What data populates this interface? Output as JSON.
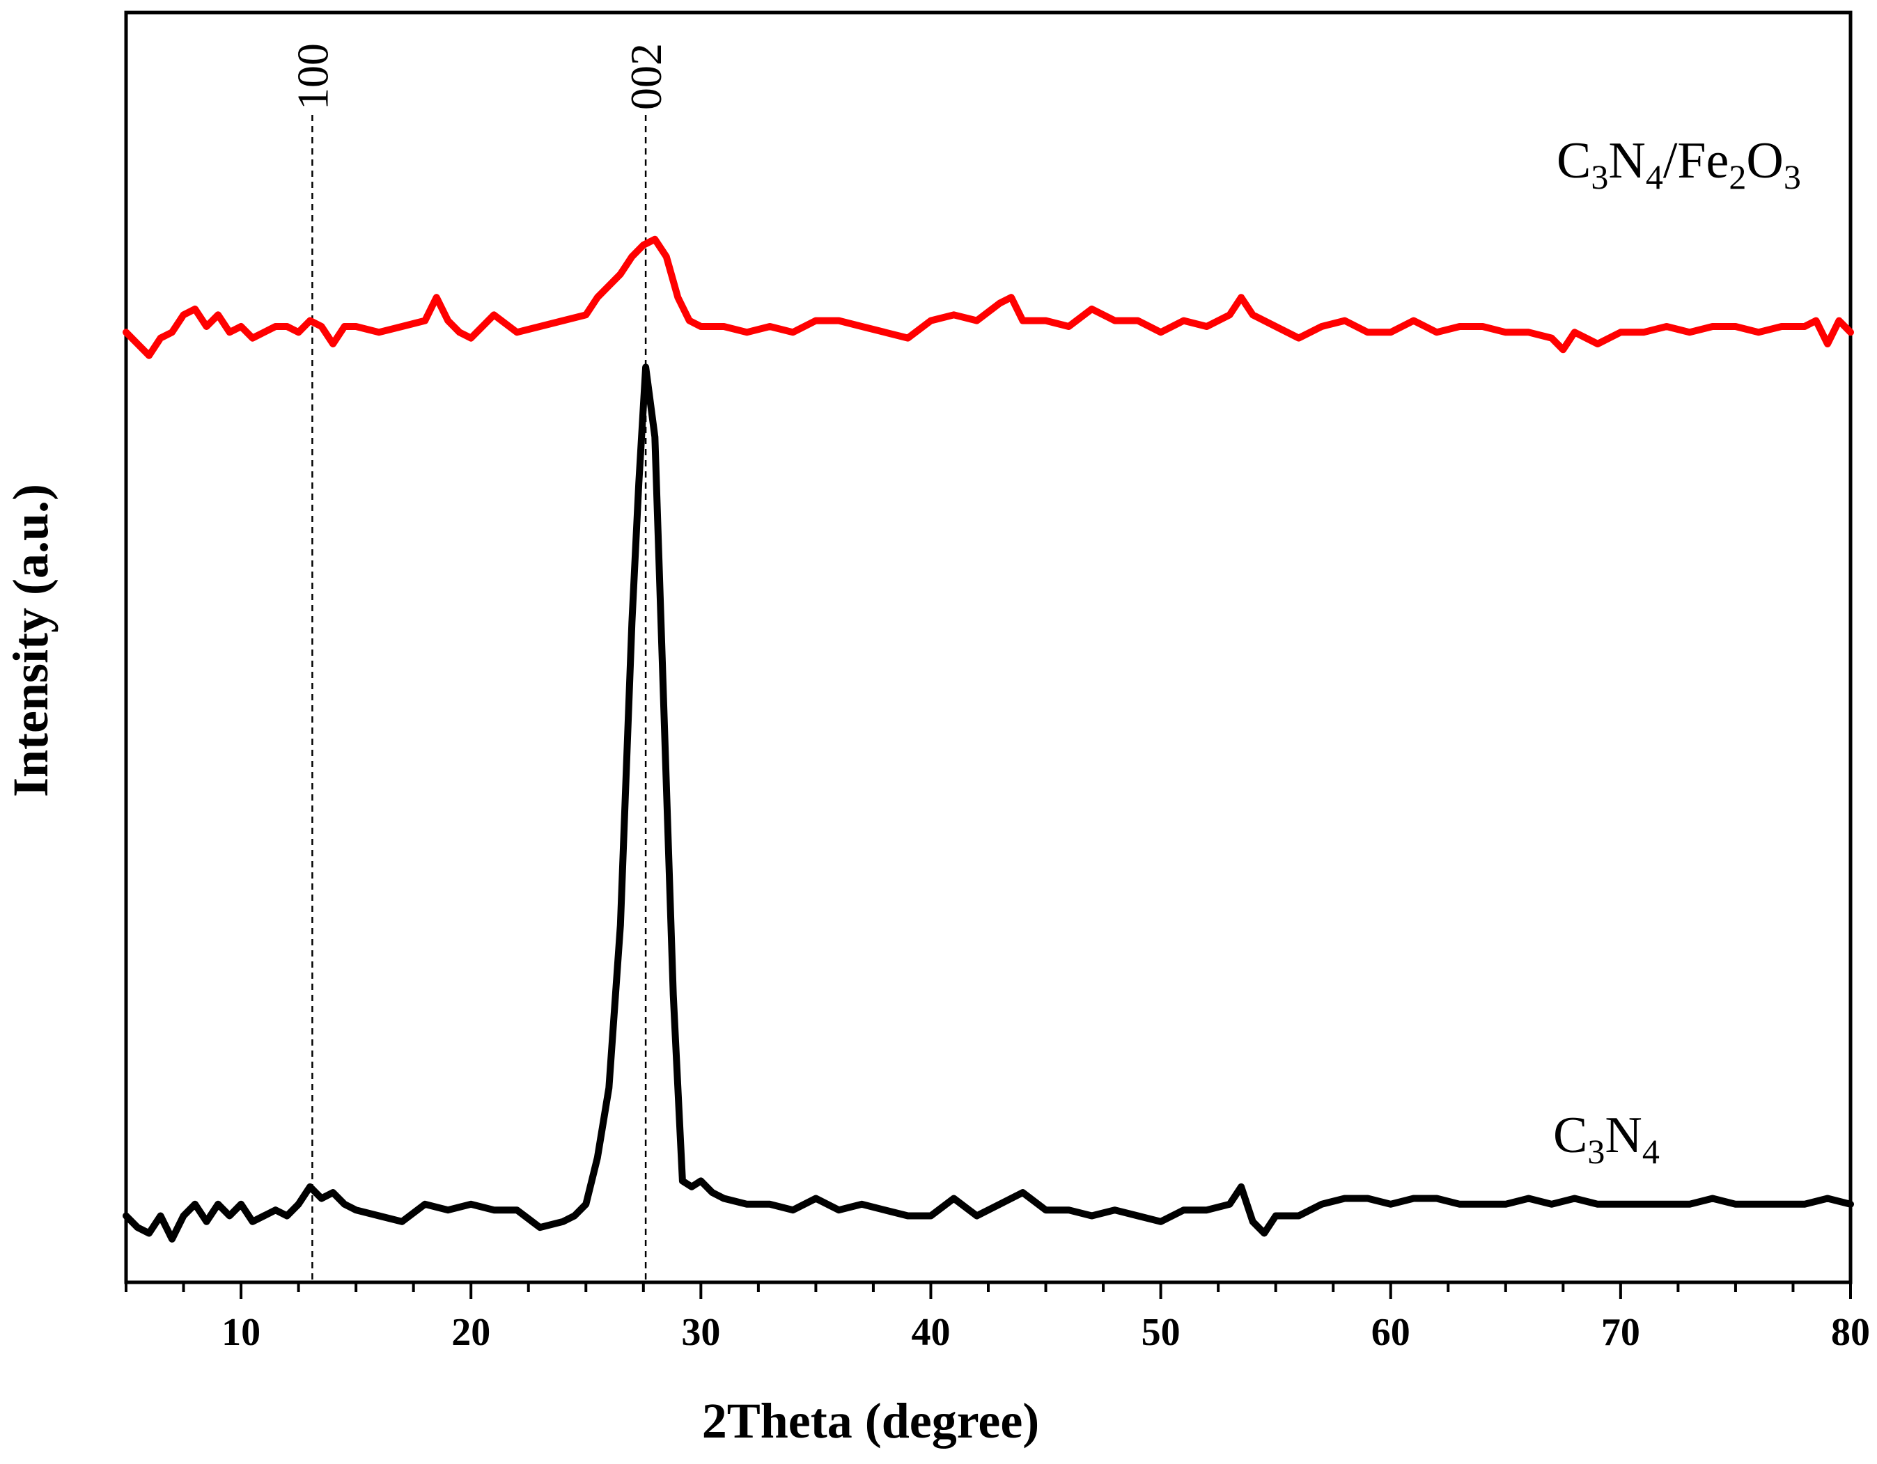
{
  "chart_data": {
    "type": "line",
    "xlabel": "2Theta (degree)",
    "ylabel": "Intensity (a.u.)",
    "xlim": [
      5,
      80
    ],
    "x_ticks": [
      10,
      20,
      30,
      40,
      50,
      60,
      70,
      80
    ],
    "x_ticks_minor_step": 2.5,
    "y_ticks_shown": false,
    "ylim": [
      0,
      100
    ],
    "grid": false,
    "legend": "none (series labelled inline)",
    "annotations": [
      {
        "text": "100",
        "x": 13.1,
        "style": "dashed vertical line"
      },
      {
        "text": "002",
        "x": 27.6,
        "style": "dashed vertical line"
      }
    ],
    "series": [
      {
        "label": [
          "C",
          "3",
          "N",
          "4"
        ],
        "color": "#000000",
        "x": [
          5,
          5.5,
          6,
          6.5,
          7,
          7.5,
          8,
          8.5,
          9,
          9.5,
          10,
          10.5,
          11,
          11.5,
          12,
          12.5,
          13,
          13.5,
          14,
          14.5,
          15,
          16,
          17,
          18,
          19,
          20,
          21,
          22,
          23,
          24,
          24.5,
          25,
          25.5,
          26,
          26.5,
          27,
          27.3,
          27.6,
          28,
          28.4,
          28.8,
          29.2,
          29.6,
          30,
          30.5,
          31,
          32,
          33,
          34,
          35,
          36,
          37,
          38,
          39,
          40,
          41,
          42,
          43,
          44,
          45,
          46,
          47,
          48,
          49,
          50,
          51,
          52,
          53,
          53.5,
          54,
          54.5,
          55,
          56,
          57,
          58,
          59,
          60,
          61,
          62,
          63,
          64,
          65,
          66,
          67,
          68,
          69,
          70,
          71,
          72,
          73,
          74,
          75,
          76,
          77,
          78,
          79,
          80
        ],
        "y": [
          5,
          4,
          3.5,
          5,
          3,
          5,
          6,
          4.5,
          6,
          5,
          6,
          4.5,
          5,
          5.5,
          5,
          6,
          7.5,
          6.5,
          7,
          6,
          5.5,
          5,
          4.5,
          6,
          5.5,
          6,
          5.5,
          5.5,
          4,
          4.5,
          5,
          6,
          10,
          16,
          30,
          56,
          68,
          78,
          72,
          48,
          24,
          8,
          7.5,
          8,
          7,
          6.5,
          6,
          6,
          5.5,
          6.5,
          5.5,
          6,
          5.5,
          5,
          5,
          6.5,
          5,
          6,
          7,
          5.5,
          5.5,
          5,
          5.5,
          5,
          4.5,
          5.5,
          5.5,
          6,
          7.5,
          4.5,
          3.5,
          5,
          5,
          6,
          6.5,
          6.5,
          6,
          6.5,
          6.5,
          6,
          6,
          6,
          6.5,
          6,
          6.5,
          6,
          6,
          6,
          6,
          6,
          6.5,
          6,
          6,
          6,
          6,
          6.5,
          6
        ]
      },
      {
        "label": [
          "C",
          "3",
          "N",
          "4",
          "/Fe",
          "2",
          "O",
          "3"
        ],
        "color": "#ff0000",
        "x": [
          5,
          5.5,
          6,
          6.5,
          7,
          7.5,
          8,
          8.5,
          9,
          9.5,
          10,
          10.5,
          11,
          11.5,
          12,
          12.5,
          13,
          13.5,
          14,
          14.5,
          15,
          16,
          17,
          18,
          18.5,
          19,
          19.5,
          20,
          21,
          22,
          23,
          24,
          25,
          25.5,
          26,
          26.5,
          27,
          27.5,
          28,
          28.5,
          29,
          29.5,
          30,
          31,
          32,
          33,
          34,
          35,
          36,
          37,
          38,
          39,
          40,
          41,
          42,
          43,
          43.5,
          44,
          45,
          46,
          47,
          48,
          49,
          50,
          51,
          52,
          53,
          53.5,
          54,
          55,
          56,
          57,
          58,
          59,
          60,
          61,
          62,
          63,
          64,
          65,
          66,
          67,
          67.5,
          68,
          69,
          70,
          71,
          72,
          73,
          74,
          75,
          76,
          77,
          78,
          78.5,
          79,
          79.5,
          80
        ],
        "y": [
          81,
          80,
          79,
          80.5,
          81,
          82.5,
          83,
          81.5,
          82.5,
          81,
          81.5,
          80.5,
          81,
          81.5,
          81.5,
          81,
          82,
          81.5,
          80,
          81.5,
          81.5,
          81,
          81.5,
          82,
          84,
          82,
          81,
          80.5,
          82.5,
          81,
          81.5,
          82,
          82.5,
          84,
          85,
          86,
          87.5,
          88.5,
          89,
          87.5,
          84,
          82,
          81.5,
          81.5,
          81,
          81.5,
          81,
          82,
          82,
          81.5,
          81,
          80.5,
          82,
          82.5,
          82,
          83.5,
          84,
          82,
          82,
          81.5,
          83,
          82,
          82,
          81,
          82,
          81.5,
          82.5,
          84,
          82.5,
          81.5,
          80.5,
          81.5,
          82,
          81,
          81,
          82,
          81,
          81.5,
          81.5,
          81,
          81,
          80.5,
          79.5,
          81,
          80,
          81,
          81,
          81.5,
          81,
          81.5,
          81.5,
          81,
          81.5,
          81.5,
          82,
          80,
          82,
          81
        ]
      }
    ]
  }
}
